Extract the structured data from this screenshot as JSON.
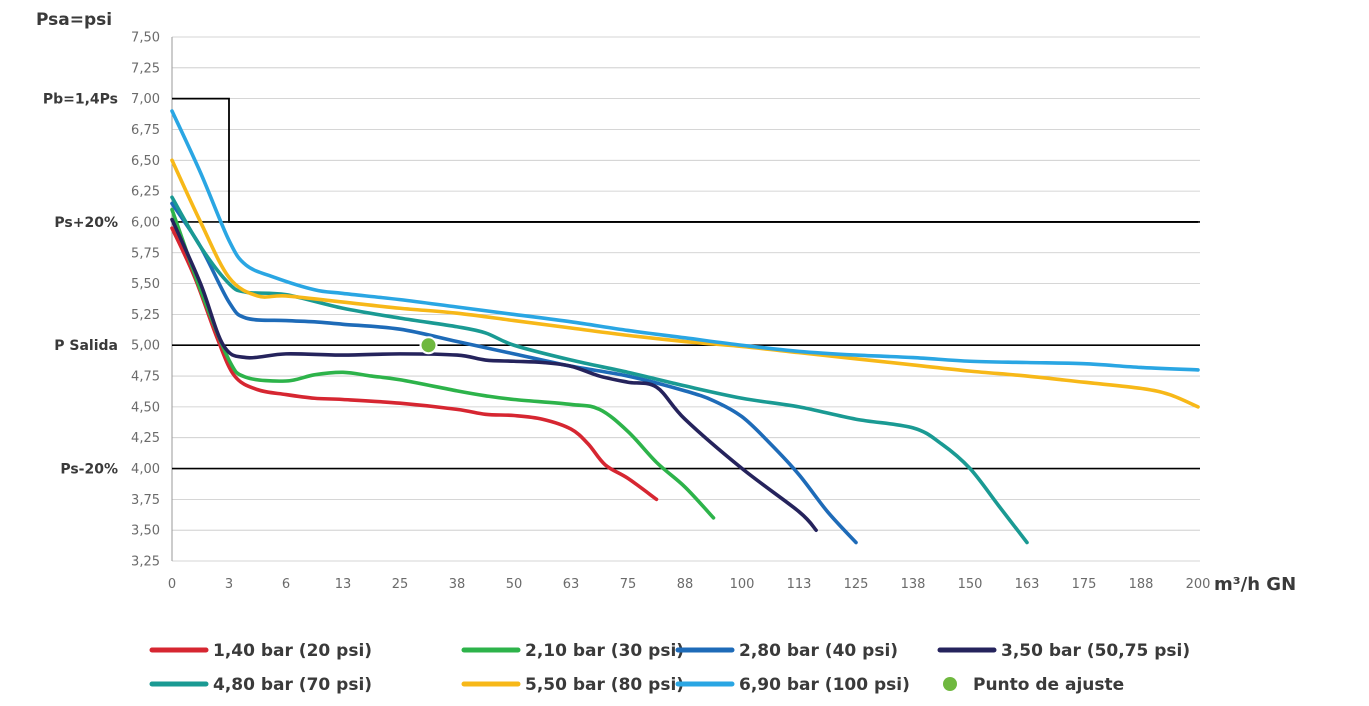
{
  "chart_data": {
    "type": "line",
    "ylabel": "Psa=psi",
    "xlabel": "m³/h GN",
    "categories": [
      "0",
      "3",
      "6",
      "13",
      "25",
      "38",
      "50",
      "63",
      "75",
      "88",
      "100",
      "113",
      "125",
      "138",
      "150",
      "163",
      "175",
      "188",
      "200"
    ],
    "y_ticks": [
      "3,25",
      "3,50",
      "3,75",
      "4,00",
      "4,25",
      "4,50",
      "4,75",
      "5,00",
      "5,25",
      "5,50",
      "5,75",
      "6,00",
      "6,25",
      "6,50",
      "6,75",
      "7,00",
      "7,25",
      "7,50"
    ],
    "ylim": [
      3.25,
      7.5
    ],
    "grid": true,
    "reference_lines": [
      {
        "label": "Ps-20%",
        "value": 4.0
      },
      {
        "label": "P Salida",
        "value": 5.0
      },
      {
        "label": "Ps+20%",
        "value": 6.0
      },
      {
        "label": "Pb=1,4Ps",
        "value": 7.0
      }
    ],
    "limit_line": {
      "color": "#000000",
      "points": [
        [
          0,
          7.0
        ],
        [
          1,
          7.0
        ],
        [
          1,
          6.0
        ],
        [
          18,
          6.0
        ]
      ]
    },
    "series": [
      {
        "name": "1,40 bar (20 psi)",
        "color": "#d62631",
        "points": [
          [
            0,
            5.95
          ],
          [
            0.4,
            5.55
          ],
          [
            0.8,
            5.05
          ],
          [
            1.1,
            4.75
          ],
          [
            1.5,
            4.64
          ],
          [
            2,
            4.6
          ],
          [
            2.5,
            4.57
          ],
          [
            3,
            4.56
          ],
          [
            4,
            4.53
          ],
          [
            5,
            4.48
          ],
          [
            5.5,
            4.44
          ],
          [
            6,
            4.43
          ],
          [
            6.5,
            4.4
          ],
          [
            7,
            4.32
          ],
          [
            7.3,
            4.2
          ],
          [
            7.6,
            4.03
          ],
          [
            8,
            3.92
          ],
          [
            8.5,
            3.75
          ]
        ]
      },
      {
        "name": "2,10 bar (30 psi)",
        "color": "#2db34a",
        "points": [
          [
            0,
            6.1
          ],
          [
            0.5,
            5.45
          ],
          [
            1,
            4.88
          ],
          [
            1.3,
            4.74
          ],
          [
            2,
            4.71
          ],
          [
            2.5,
            4.76
          ],
          [
            3,
            4.78
          ],
          [
            3.5,
            4.75
          ],
          [
            4,
            4.72
          ],
          [
            5,
            4.63
          ],
          [
            5.5,
            4.59
          ],
          [
            6,
            4.56
          ],
          [
            7,
            4.52
          ],
          [
            7.5,
            4.48
          ],
          [
            8,
            4.3
          ],
          [
            8.5,
            4.05
          ],
          [
            9,
            3.85
          ],
          [
            9.5,
            3.6
          ]
        ]
      },
      {
        "name": "2,80 bar (40 psi)",
        "color": "#1e6bb8",
        "points": [
          [
            0,
            6.15
          ],
          [
            0.5,
            5.8
          ],
          [
            1,
            5.35
          ],
          [
            1.3,
            5.22
          ],
          [
            2,
            5.2
          ],
          [
            2.5,
            5.19
          ],
          [
            3,
            5.17
          ],
          [
            4,
            5.13
          ],
          [
            5,
            5.03
          ],
          [
            6,
            4.93
          ],
          [
            7,
            4.83
          ],
          [
            8,
            4.75
          ],
          [
            9,
            4.63
          ],
          [
            9.5,
            4.55
          ],
          [
            10,
            4.42
          ],
          [
            10.5,
            4.2
          ],
          [
            11,
            3.95
          ],
          [
            11.5,
            3.65
          ],
          [
            12,
            3.4
          ]
        ]
      },
      {
        "name": "3,50 bar (50,75 psi)",
        "color": "#25235c",
        "points": [
          [
            0,
            6.02
          ],
          [
            0.5,
            5.5
          ],
          [
            0.9,
            5.0
          ],
          [
            1.3,
            4.9
          ],
          [
            2,
            4.93
          ],
          [
            3,
            4.92
          ],
          [
            4,
            4.93
          ],
          [
            5,
            4.92
          ],
          [
            5.5,
            4.88
          ],
          [
            6,
            4.87
          ],
          [
            6.5,
            4.86
          ],
          [
            7,
            4.83
          ],
          [
            7.5,
            4.75
          ],
          [
            8,
            4.7
          ],
          [
            8.5,
            4.66
          ],
          [
            9,
            4.4
          ],
          [
            10,
            4.0
          ],
          [
            11,
            3.65
          ],
          [
            11.3,
            3.5
          ]
        ]
      },
      {
        "name": "4,80 bar (70 psi)",
        "color": "#1a9a93",
        "points": [
          [
            0,
            6.2
          ],
          [
            0.5,
            5.8
          ],
          [
            1,
            5.5
          ],
          [
            1.3,
            5.43
          ],
          [
            2,
            5.41
          ],
          [
            3,
            5.3
          ],
          [
            4,
            5.22
          ],
          [
            5,
            5.15
          ],
          [
            5.5,
            5.1
          ],
          [
            6,
            5.0
          ],
          [
            7,
            4.88
          ],
          [
            8,
            4.78
          ],
          [
            9,
            4.67
          ],
          [
            10,
            4.57
          ],
          [
            11,
            4.5
          ],
          [
            12,
            4.4
          ],
          [
            13,
            4.33
          ],
          [
            13.5,
            4.2
          ],
          [
            14,
            4.0
          ],
          [
            14.5,
            3.7
          ],
          [
            15,
            3.4
          ]
        ]
      },
      {
        "name": "5,50 bar (80 psi)",
        "color": "#f7b818",
        "points": [
          [
            0,
            6.5
          ],
          [
            0.5,
            6.0
          ],
          [
            1,
            5.55
          ],
          [
            1.5,
            5.4
          ],
          [
            2,
            5.4
          ],
          [
            3,
            5.35
          ],
          [
            4,
            5.3
          ],
          [
            5,
            5.26
          ],
          [
            6,
            5.2
          ],
          [
            7,
            5.14
          ],
          [
            8,
            5.08
          ],
          [
            9,
            5.03
          ],
          [
            10,
            4.99
          ],
          [
            11,
            4.94
          ],
          [
            12,
            4.89
          ],
          [
            13,
            4.84
          ],
          [
            14,
            4.79
          ],
          [
            15,
            4.75
          ],
          [
            16,
            4.7
          ],
          [
            17,
            4.65
          ],
          [
            17.5,
            4.6
          ],
          [
            18,
            4.5
          ]
        ]
      },
      {
        "name": "6,90 bar (100 psi)",
        "color": "#2aa6e3",
        "points": [
          [
            0,
            6.9
          ],
          [
            0.5,
            6.4
          ],
          [
            1,
            5.85
          ],
          [
            1.3,
            5.65
          ],
          [
            1.8,
            5.55
          ],
          [
            2.5,
            5.45
          ],
          [
            3,
            5.42
          ],
          [
            4,
            5.37
          ],
          [
            5,
            5.31
          ],
          [
            6,
            5.25
          ],
          [
            7,
            5.19
          ],
          [
            8,
            5.12
          ],
          [
            9,
            5.06
          ],
          [
            10,
            5.0
          ],
          [
            11,
            4.95
          ],
          [
            12,
            4.92
          ],
          [
            13,
            4.9
          ],
          [
            14,
            4.87
          ],
          [
            15,
            4.86
          ],
          [
            16,
            4.85
          ],
          [
            17,
            4.82
          ],
          [
            18,
            4.8
          ]
        ]
      }
    ],
    "marker": {
      "name": "Punto de ajuste",
      "color": "#6fb83f",
      "x": 4.5,
      "y": 5.0
    },
    "legend_position": "bottom"
  }
}
